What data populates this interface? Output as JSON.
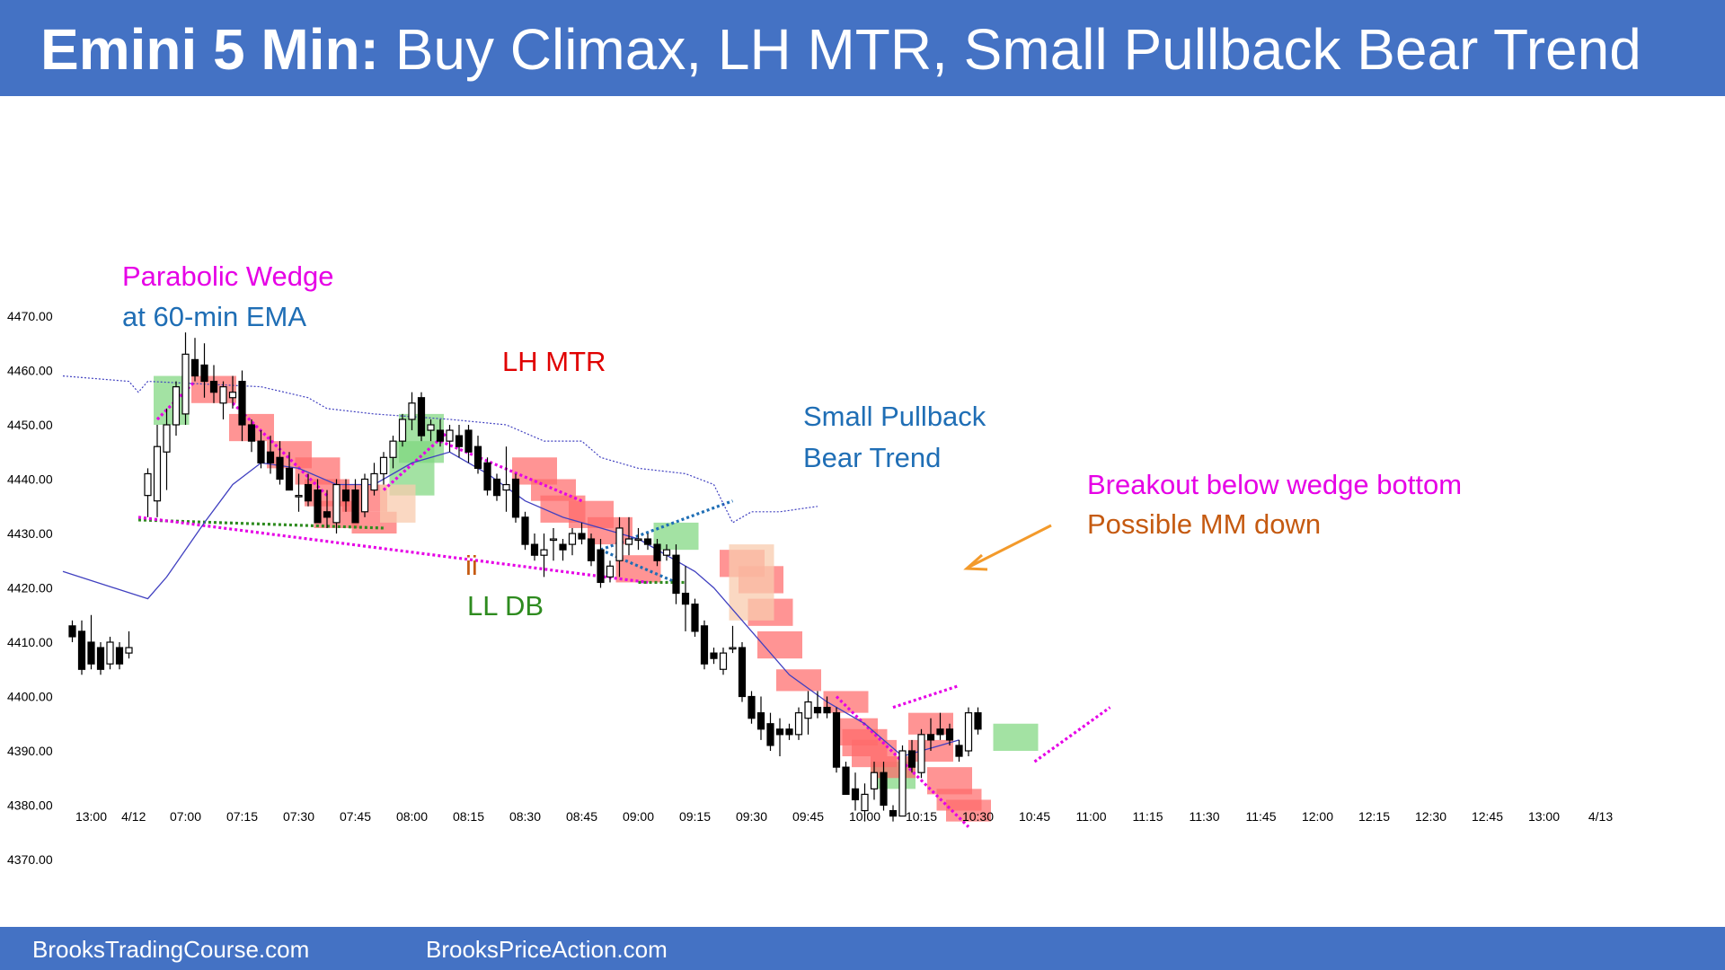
{
  "header": {
    "title_bold": "Emini 5 Min:",
    "title_rest": " Buy Climax, LH MTR, Small Pullback Bear Trend"
  },
  "footer": {
    "left": "BrooksTradingCourse.com",
    "right": "BrooksPriceAction.com"
  },
  "colors": {
    "banner": "#4472c4",
    "magenta": "#e600e6",
    "blue": "#1f6eb5",
    "red": "#e00000",
    "green": "#2e8b1f",
    "orange": "#c55a11",
    "ema": "#4040c0",
    "bear_box": "#ff6b6b",
    "bull_box": "#7fd77f",
    "arrow": "#f39a2b"
  },
  "chart_data": {
    "type": "candlestick",
    "y_ticks": [
      "4470.00",
      "4460.00",
      "4450.00",
      "4440.00",
      "4430.00",
      "4420.00",
      "4410.00",
      "4400.00",
      "4390.00",
      "4380.00",
      "4370.00"
    ],
    "ylim": [
      4365,
      4488
    ],
    "x_ticks": [
      "13:00",
      "4/12",
      "07:00",
      "07:15",
      "07:30",
      "07:45",
      "08:00",
      "08:15",
      "08:30",
      "08:45",
      "09:00",
      "09:15",
      "09:30",
      "09:45",
      "10:00",
      "10:15",
      "10:30",
      "10:45",
      "11:00",
      "11:15",
      "11:30",
      "11:45",
      "12:00",
      "12:15",
      "12:30",
      "12:45",
      "13:00",
      "4/13"
    ],
    "x_tick_bar": [
      2,
      6.5,
      12,
      18,
      24,
      30,
      36,
      42,
      48,
      54,
      60,
      66,
      72,
      78,
      84,
      90,
      96,
      102,
      108,
      114,
      120,
      126,
      132,
      138,
      144,
      150,
      156,
      162
    ],
    "candles": [
      [
        4413,
        4414,
        4410,
        4411
      ],
      [
        4412,
        4414,
        4404,
        4405
      ],
      [
        4410,
        4415,
        4405,
        4406
      ],
      [
        4409,
        4410,
        4404,
        4405
      ],
      [
        4406,
        4411,
        4405,
        4410
      ],
      [
        4409,
        4410,
        4405,
        4406
      ],
      [
        4408,
        4412,
        4407,
        4409
      ],
      [
        4437,
        4442,
        4433,
        4441
      ],
      [
        4436,
        4450,
        4433,
        4446
      ],
      [
        4445,
        4453,
        4438,
        4450
      ],
      [
        4450,
        4458,
        4448,
        4457
      ],
      [
        4452,
        4467,
        4450,
        4463
      ],
      [
        4462,
        4466,
        4458,
        4459
      ],
      [
        4461,
        4465,
        4455,
        4458
      ],
      [
        4458,
        4461,
        4454,
        4456
      ],
      [
        4454,
        4458,
        4451,
        4457
      ],
      [
        4455,
        4459,
        4453,
        4456
      ],
      [
        4458,
        4460,
        4447,
        4450
      ],
      [
        4450,
        4451,
        4445,
        4447
      ],
      [
        4447,
        4449,
        4442,
        4443
      ],
      [
        4445,
        4448,
        4441,
        4443
      ],
      [
        4444,
        4447,
        4439,
        4440
      ],
      [
        4442,
        4445,
        4438,
        4438
      ],
      [
        4437,
        4441,
        4434,
        4437
      ],
      [
        4439,
        4441,
        4435,
        4436
      ],
      [
        4438,
        4440,
        4432,
        4432
      ],
      [
        4434,
        4438,
        4431,
        4433
      ],
      [
        4432,
        4440,
        4430,
        4439
      ],
      [
        4438,
        4440,
        4434,
        4436
      ],
      [
        4438,
        4440,
        4432,
        4432
      ],
      [
        4434,
        4441,
        4433,
        4440
      ],
      [
        4438,
        4443,
        4437,
        4441
      ],
      [
        4441,
        4445,
        4439,
        4444
      ],
      [
        4444,
        4448,
        4442,
        4447
      ],
      [
        4447,
        4452,
        4446,
        4451
      ],
      [
        4451,
        4456,
        4449,
        4454
      ],
      [
        4455,
        4456,
        4447,
        4448
      ],
      [
        4449,
        4451,
        4447,
        4450
      ],
      [
        4449,
        4451,
        4446,
        4447
      ],
      [
        4447,
        4450,
        4445,
        4449
      ],
      [
        4448,
        4450,
        4444,
        4446
      ],
      [
        4449,
        4450,
        4443,
        4445
      ],
      [
        4446,
        4448,
        4441,
        4442
      ],
      [
        4443,
        4444,
        4437,
        4438
      ],
      [
        4440,
        4441,
        4436,
        4437
      ],
      [
        4438,
        4446,
        4434,
        4439
      ],
      [
        4440,
        4441,
        4432,
        4433
      ],
      [
        4433,
        4434,
        4427,
        4428
      ],
      [
        4428,
        4430,
        4425,
        4426
      ],
      [
        4426,
        4430,
        4422,
        4427
      ],
      [
        4429,
        4431,
        4425,
        4429
      ],
      [
        4428,
        4429,
        4425,
        4427
      ],
      [
        4428,
        4431,
        4426,
        4430
      ],
      [
        4430,
        4432,
        4428,
        4429
      ],
      [
        4429,
        4430,
        4424,
        4425
      ],
      [
        4427,
        4429,
        4420,
        4421
      ],
      [
        4422,
        4425,
        4421,
        4424
      ],
      [
        4425,
        4433,
        4422,
        4431
      ],
      [
        4428,
        4433,
        4426,
        4429
      ],
      [
        4429,
        4431,
        4427,
        4429
      ],
      [
        4429,
        4430,
        4427,
        4428
      ],
      [
        4428,
        4429,
        4424,
        4425
      ],
      [
        4426,
        4428,
        4425,
        4427
      ],
      [
        4426,
        4428,
        4417,
        4419
      ],
      [
        4419,
        4424,
        4412,
        4417
      ],
      [
        4417,
        4418,
        4411,
        4412
      ],
      [
        4413,
        4414,
        4405,
        4406
      ],
      [
        4408,
        4409,
        4406,
        4407
      ],
      [
        4405,
        4409,
        4404,
        4408
      ],
      [
        4409,
        4413,
        4408,
        4409
      ],
      [
        4409,
        4410,
        4399,
        4400
      ],
      [
        4400,
        4401,
        4395,
        4396
      ],
      [
        4397,
        4400,
        4392,
        4394
      ],
      [
        4395,
        4397,
        4390,
        4391
      ],
      [
        4394,
        4396,
        4389,
        4393
      ],
      [
        4394,
        4395,
        4392,
        4393
      ],
      [
        4393,
        4398,
        4392,
        4397
      ],
      [
        4396,
        4401,
        4393,
        4399
      ],
      [
        4398,
        4401,
        4396,
        4397
      ],
      [
        4398,
        4400,
        4396,
        4397
      ],
      [
        4397,
        4398,
        4386,
        4387
      ],
      [
        4387,
        4388,
        4382,
        4382
      ],
      [
        4383,
        4386,
        4379,
        4381
      ],
      [
        4379,
        4384,
        4377,
        4382
      ],
      [
        4383,
        4388,
        4381,
        4386
      ],
      [
        4386,
        4388,
        4379,
        4380
      ],
      [
        4379,
        4380,
        4377,
        4378
      ],
      [
        4378,
        4391,
        4378,
        4390
      ],
      [
        4390,
        4392,
        4386,
        4387
      ],
      [
        4386,
        4394,
        4385,
        4393
      ],
      [
        4393,
        4396,
        4390,
        4392
      ],
      [
        4394,
        4397,
        4392,
        4393
      ],
      [
        4394,
        4395,
        4391,
        4392
      ],
      [
        4391,
        4392,
        4388,
        4389
      ],
      [
        4390,
        4398,
        4389,
        4397
      ],
      [
        4397,
        4398,
        4393,
        4394
      ]
    ],
    "ema_20": [
      [
        -1,
        4423
      ],
      [
        8,
        4418
      ],
      [
        10,
        4422
      ],
      [
        14,
        4432
      ],
      [
        17,
        4439
      ],
      [
        20,
        4443
      ],
      [
        24,
        4442
      ],
      [
        28,
        4439
      ],
      [
        32,
        4439
      ],
      [
        36,
        4443
      ],
      [
        40,
        4445
      ],
      [
        44,
        4441
      ],
      [
        48,
        4436
      ],
      [
        52,
        4433
      ],
      [
        56,
        4431
      ],
      [
        60,
        4429
      ],
      [
        64,
        4425
      ],
      [
        66,
        4423
      ],
      [
        68,
        4420
      ],
      [
        72,
        4412
      ],
      [
        76,
        4404
      ],
      [
        80,
        4399
      ],
      [
        84,
        4395
      ],
      [
        88,
        4389
      ],
      [
        92,
        4391
      ],
      [
        94,
        4392
      ]
    ],
    "ema_60min": [
      [
        -1,
        4459
      ],
      [
        6,
        4458
      ],
      [
        7,
        4456
      ],
      [
        8,
        4458
      ],
      [
        20,
        4457
      ],
      [
        25,
        4455
      ],
      [
        27,
        4453
      ],
      [
        32,
        4452
      ],
      [
        40,
        4451
      ],
      [
        46,
        4450
      ],
      [
        50,
        4447
      ],
      [
        54,
        4447
      ],
      [
        56,
        4444
      ],
      [
        60,
        4442
      ],
      [
        65,
        4441
      ],
      [
        68,
        4439
      ],
      [
        70,
        4432
      ],
      [
        72,
        4434
      ],
      [
        75,
        4434
      ],
      [
        79,
        4435
      ]
    ],
    "annotations": [
      "Parabolic Wedge",
      "at 60-min EMA",
      "LH MTR",
      "Small Pullback",
      "Bear Trend",
      "Breakout below wedge bottom",
      "Possible  MM down",
      "ii",
      "LL DB"
    ],
    "xlabel": "",
    "ylabel": ""
  }
}
